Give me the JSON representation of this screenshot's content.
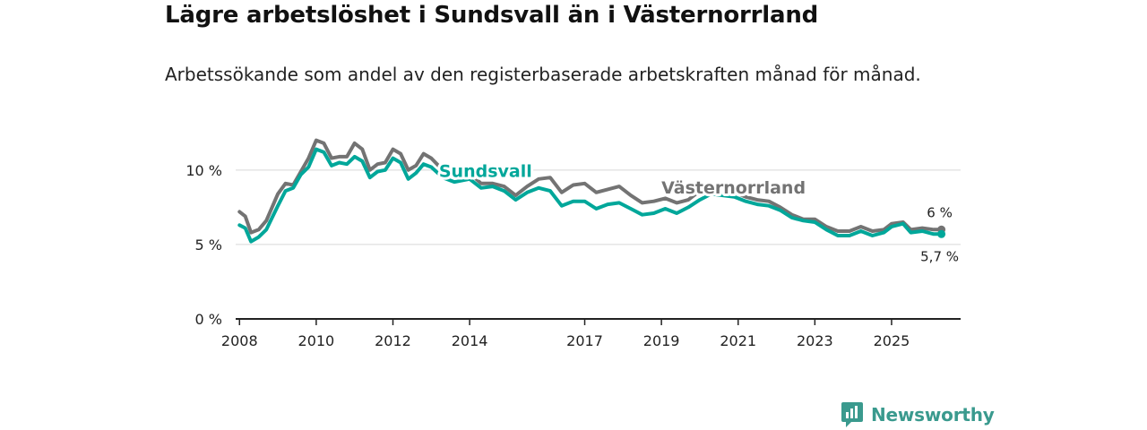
{
  "title": "Lägre arbetslöshet i Sundsvall än i Västernorrland",
  "subtitle": "Arbetssökande som andel av den registerbaserade arbetskraften månad för månad.",
  "brand": "Newsworthy",
  "colors": {
    "sundsvall": "#00a79a",
    "vasternorrland": "#737373",
    "grid": "#d6d6d6",
    "axis": "#222222",
    "text": "#222222"
  },
  "chart_data": {
    "type": "line",
    "title": "Lägre arbetslöshet i Sundsvall än i Västernorrland",
    "xlabel": "",
    "ylabel": "",
    "xlim": [
      2007.9,
      2026.8
    ],
    "ylim": [
      0,
      13
    ],
    "xticks": [
      {
        "value": 2008,
        "label": "2008"
      },
      {
        "value": 2010,
        "label": "2010"
      },
      {
        "value": 2012,
        "label": "2012"
      },
      {
        "value": 2014,
        "label": "2014"
      },
      {
        "value": 2017,
        "label": "2017"
      },
      {
        "value": 2019,
        "label": "2019"
      },
      {
        "value": 2021,
        "label": "2021"
      },
      {
        "value": 2023,
        "label": "2023"
      },
      {
        "value": 2025,
        "label": "2025"
      }
    ],
    "yticks": [
      {
        "value": 0,
        "label": "0 %"
      },
      {
        "value": 5,
        "label": "5 %"
      },
      {
        "value": 10,
        "label": "10 %"
      }
    ],
    "series": [
      {
        "name": "Västernorrland",
        "color": "#737373",
        "end_label": "6 %",
        "points": [
          [
            2008.0,
            7.2
          ],
          [
            2008.15,
            6.9
          ],
          [
            2008.3,
            5.8
          ],
          [
            2008.5,
            6.0
          ],
          [
            2008.7,
            6.6
          ],
          [
            2009.0,
            8.4
          ],
          [
            2009.2,
            9.1
          ],
          [
            2009.4,
            9.0
          ],
          [
            2009.6,
            9.9
          ],
          [
            2009.8,
            10.8
          ],
          [
            2010.0,
            12.0
          ],
          [
            2010.2,
            11.8
          ],
          [
            2010.4,
            10.8
          ],
          [
            2010.6,
            10.9
          ],
          [
            2010.8,
            10.9
          ],
          [
            2011.0,
            11.8
          ],
          [
            2011.2,
            11.4
          ],
          [
            2011.4,
            10.0
          ],
          [
            2011.6,
            10.4
          ],
          [
            2011.8,
            10.5
          ],
          [
            2012.0,
            11.4
          ],
          [
            2012.2,
            11.1
          ],
          [
            2012.4,
            10.0
          ],
          [
            2012.6,
            10.3
          ],
          [
            2012.8,
            11.1
          ],
          [
            2013.0,
            10.8
          ],
          [
            2013.3,
            10.0
          ],
          [
            2013.6,
            9.6
          ],
          [
            2014.0,
            9.8
          ],
          [
            2014.3,
            9.1
          ],
          [
            2014.6,
            9.1
          ],
          [
            2014.9,
            8.9
          ],
          [
            2015.2,
            8.3
          ],
          [
            2015.5,
            8.9
          ],
          [
            2015.8,
            9.4
          ],
          [
            2016.1,
            9.5
          ],
          [
            2016.4,
            8.5
          ],
          [
            2016.7,
            9.0
          ],
          [
            2017.0,
            9.1
          ],
          [
            2017.3,
            8.5
          ],
          [
            2017.6,
            8.7
          ],
          [
            2017.9,
            8.9
          ],
          [
            2018.2,
            8.3
          ],
          [
            2018.5,
            7.8
          ],
          [
            2018.8,
            7.9
          ],
          [
            2019.1,
            8.1
          ],
          [
            2019.4,
            7.8
          ],
          [
            2019.7,
            8.0
          ],
          [
            2020.0,
            8.6
          ],
          [
            2020.3,
            9.0
          ],
          [
            2020.6,
            8.9
          ],
          [
            2020.9,
            8.5
          ],
          [
            2021.2,
            8.2
          ],
          [
            2021.5,
            8.0
          ],
          [
            2021.8,
            7.9
          ],
          [
            2022.1,
            7.5
          ],
          [
            2022.4,
            7.0
          ],
          [
            2022.7,
            6.7
          ],
          [
            2023.0,
            6.7
          ],
          [
            2023.3,
            6.2
          ],
          [
            2023.6,
            5.9
          ],
          [
            2023.9,
            5.9
          ],
          [
            2024.2,
            6.2
          ],
          [
            2024.5,
            5.9
          ],
          [
            2024.8,
            6.0
          ],
          [
            2025.0,
            6.4
          ],
          [
            2025.3,
            6.5
          ],
          [
            2025.5,
            6.0
          ],
          [
            2025.8,
            6.1
          ],
          [
            2026.1,
            6.0
          ],
          [
            2026.3,
            6.0
          ]
        ]
      },
      {
        "name": "Sundsvall",
        "color": "#00a79a",
        "end_label": "5,7 %",
        "points": [
          [
            2008.0,
            6.3
          ],
          [
            2008.15,
            6.1
          ],
          [
            2008.3,
            5.2
          ],
          [
            2008.5,
            5.5
          ],
          [
            2008.7,
            6.0
          ],
          [
            2009.0,
            7.6
          ],
          [
            2009.2,
            8.6
          ],
          [
            2009.4,
            8.8
          ],
          [
            2009.6,
            9.7
          ],
          [
            2009.8,
            10.2
          ],
          [
            2010.0,
            11.4
          ],
          [
            2010.2,
            11.2
          ],
          [
            2010.4,
            10.3
          ],
          [
            2010.6,
            10.5
          ],
          [
            2010.8,
            10.4
          ],
          [
            2011.0,
            10.9
          ],
          [
            2011.2,
            10.6
          ],
          [
            2011.4,
            9.5
          ],
          [
            2011.6,
            9.9
          ],
          [
            2011.8,
            10.0
          ],
          [
            2012.0,
            10.8
          ],
          [
            2012.2,
            10.5
          ],
          [
            2012.4,
            9.4
          ],
          [
            2012.6,
            9.8
          ],
          [
            2012.8,
            10.4
          ],
          [
            2013.0,
            10.2
          ],
          [
            2013.3,
            9.5
          ],
          [
            2013.6,
            9.2
          ],
          [
            2014.0,
            9.4
          ],
          [
            2014.3,
            8.8
          ],
          [
            2014.6,
            8.9
          ],
          [
            2014.9,
            8.6
          ],
          [
            2015.2,
            8.0
          ],
          [
            2015.5,
            8.5
          ],
          [
            2015.8,
            8.8
          ],
          [
            2016.1,
            8.6
          ],
          [
            2016.4,
            7.6
          ],
          [
            2016.7,
            7.9
          ],
          [
            2017.0,
            7.9
          ],
          [
            2017.3,
            7.4
          ],
          [
            2017.6,
            7.7
          ],
          [
            2017.9,
            7.8
          ],
          [
            2018.2,
            7.4
          ],
          [
            2018.5,
            7.0
          ],
          [
            2018.8,
            7.1
          ],
          [
            2019.1,
            7.4
          ],
          [
            2019.4,
            7.1
          ],
          [
            2019.7,
            7.5
          ],
          [
            2020.0,
            8.0
          ],
          [
            2020.3,
            8.4
          ],
          [
            2020.6,
            8.3
          ],
          [
            2020.9,
            8.2
          ],
          [
            2021.2,
            7.9
          ],
          [
            2021.5,
            7.7
          ],
          [
            2021.8,
            7.6
          ],
          [
            2022.1,
            7.3
          ],
          [
            2022.4,
            6.8
          ],
          [
            2022.7,
            6.6
          ],
          [
            2023.0,
            6.5
          ],
          [
            2023.3,
            6.0
          ],
          [
            2023.6,
            5.6
          ],
          [
            2023.9,
            5.6
          ],
          [
            2024.2,
            5.9
          ],
          [
            2024.5,
            5.6
          ],
          [
            2024.8,
            5.8
          ],
          [
            2025.0,
            6.2
          ],
          [
            2025.3,
            6.4
          ],
          [
            2025.5,
            5.8
          ],
          [
            2025.8,
            5.9
          ],
          [
            2026.1,
            5.7
          ],
          [
            2026.3,
            5.7
          ]
        ]
      }
    ],
    "annotations": [
      {
        "text": "Sundsvall",
        "series": "Sundsvall",
        "x": 2013.2,
        "y": 9.9
      },
      {
        "text": "Västernorrland",
        "series": "Västernorrland",
        "x": 2019.0,
        "y": 8.8
      },
      {
        "text": "6 %",
        "series": "Västernorrland",
        "x": 2026.3,
        "y": 6.0
      },
      {
        "text": "5,7 %",
        "series": "Sundsvall",
        "x": 2026.3,
        "y": 5.7
      }
    ]
  }
}
